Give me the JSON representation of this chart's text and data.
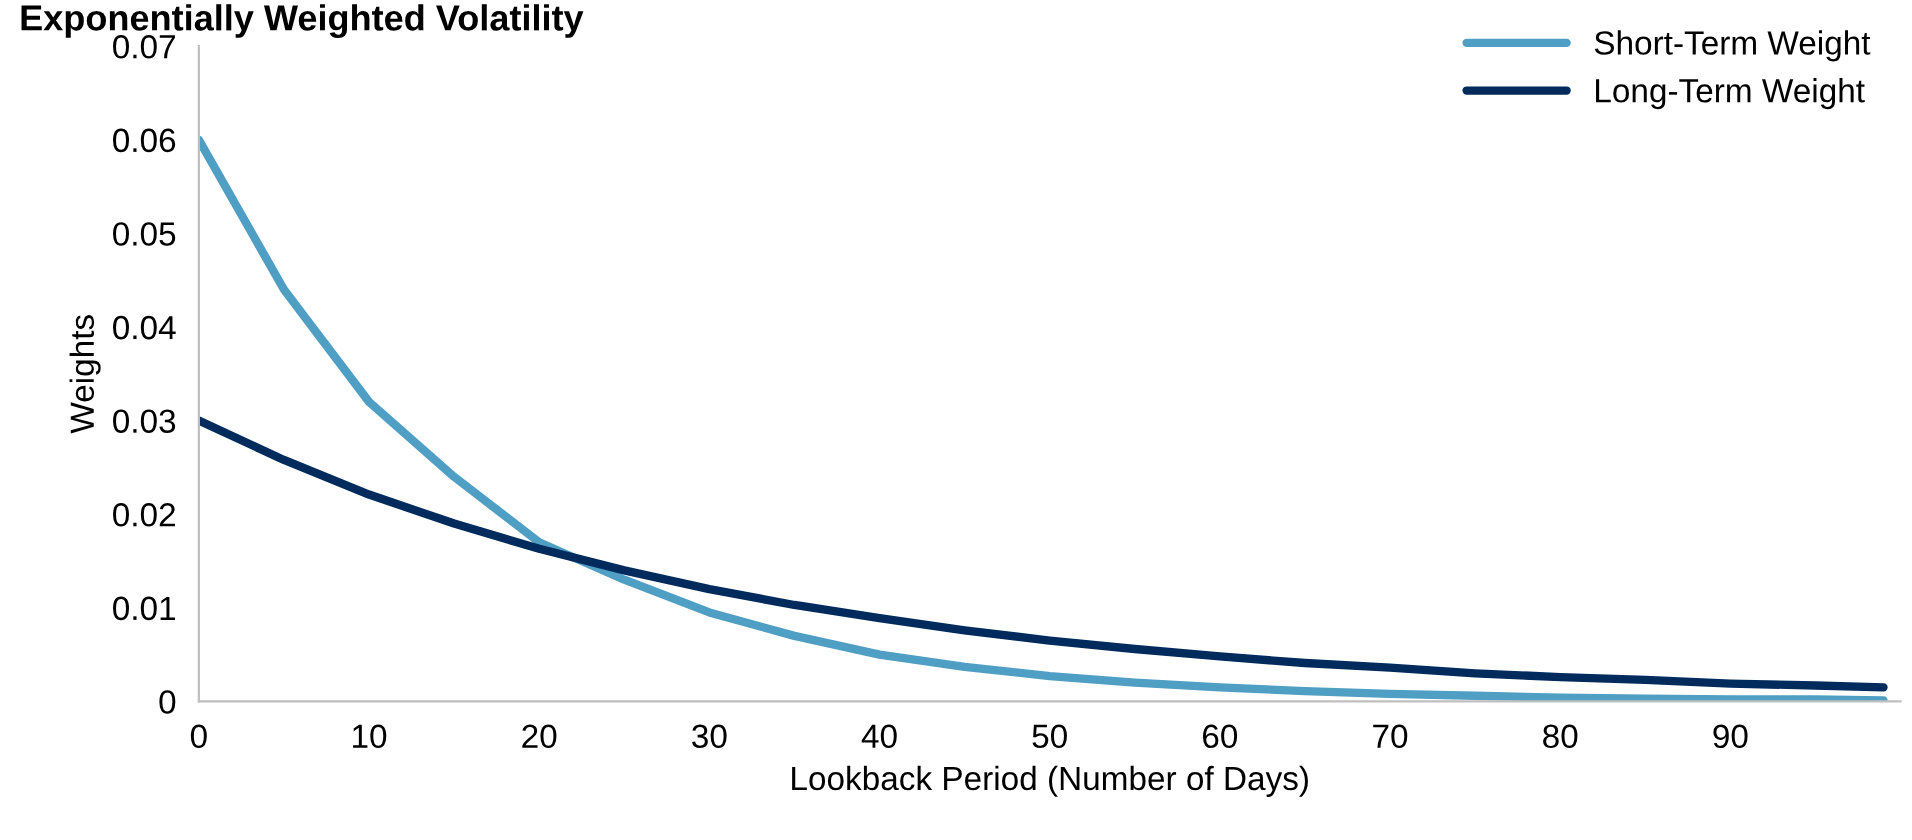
{
  "chart_data": {
    "type": "line",
    "title": "Exponentially Weighted Volatility",
    "xlabel": "Lookback Period (Number of Days)",
    "ylabel": "Weights",
    "x": [
      0,
      5,
      10,
      15,
      20,
      25,
      30,
      35,
      40,
      45,
      50,
      55,
      60,
      65,
      70,
      75,
      80,
      85,
      90,
      95,
      99
    ],
    "series": [
      {
        "name": "Short-Term Weight",
        "color": "#4f9ec4",
        "values": [
          0.06,
          0.044,
          0.032,
          0.024,
          0.017,
          0.013,
          0.0095,
          0.007,
          0.005,
          0.0037,
          0.0027,
          0.002,
          0.0015,
          0.0011,
          0.0008,
          0.0006,
          0.0004,
          0.0003,
          0.0002,
          0.0002,
          0.0001
        ]
      },
      {
        "name": "Long-Term Weight",
        "color": "#002b5c",
        "values": [
          0.03,
          0.0258,
          0.0221,
          0.019,
          0.0163,
          0.014,
          0.012,
          0.0103,
          0.0089,
          0.0076,
          0.0065,
          0.0056,
          0.0048,
          0.0041,
          0.0036,
          0.003,
          0.0026,
          0.0023,
          0.0019,
          0.0017,
          0.0015
        ]
      }
    ],
    "xlim": [
      0,
      100
    ],
    "xticks": [
      0,
      10,
      20,
      30,
      40,
      50,
      60,
      70,
      80,
      90
    ],
    "ylim": [
      0,
      0.07
    ],
    "yticks": [
      {
        "value": 0,
        "label": "0"
      },
      0.01,
      0.02,
      0.03,
      0.04,
      0.05,
      0.06,
      0.07
    ],
    "grid": false,
    "legend": "top right",
    "marker": "none",
    "line_style": "solid"
  }
}
